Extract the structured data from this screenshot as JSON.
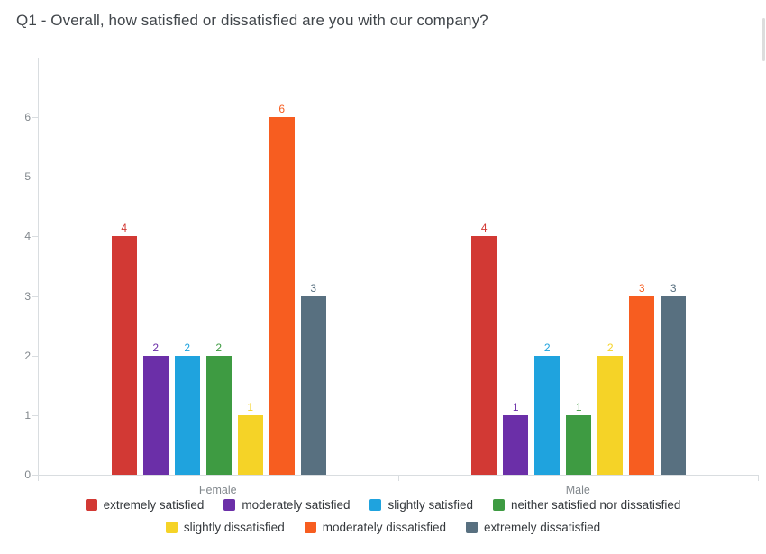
{
  "chart_data": {
    "type": "bar",
    "title": "Q1 - Overall, how satisfied or dissatisfied are you with our company?",
    "categories": [
      "Female",
      "Male"
    ],
    "series": [
      {
        "name": "extremely satisfied",
        "color": "#d23934",
        "values": [
          4,
          4
        ]
      },
      {
        "name": "moderately satisfied",
        "color": "#6b2fa8",
        "values": [
          2,
          1
        ]
      },
      {
        "name": "slightly satisfied",
        "color": "#1fa3de",
        "values": [
          2,
          2
        ]
      },
      {
        "name": "neither satisfied nor dissatisfied",
        "color": "#3e9b42",
        "values": [
          2,
          1
        ]
      },
      {
        "name": "slightly dissatisfied",
        "color": "#f5d327",
        "values": [
          1,
          2
        ]
      },
      {
        "name": "moderately dissatisfied",
        "color": "#f75d20",
        "values": [
          6,
          3
        ]
      },
      {
        "name": "extremely dissatisfied",
        "color": "#587080",
        "values": [
          3,
          3
        ]
      }
    ],
    "xlabel": "",
    "ylabel": "",
    "y_ticks": [
      0,
      1,
      2,
      3,
      4,
      5,
      6
    ],
    "ylim": [
      0,
      7
    ],
    "grid": false,
    "legend_position": "bottom",
    "legend_rows": [
      [
        0,
        1,
        2,
        3
      ],
      [
        4,
        5,
        6
      ]
    ]
  }
}
